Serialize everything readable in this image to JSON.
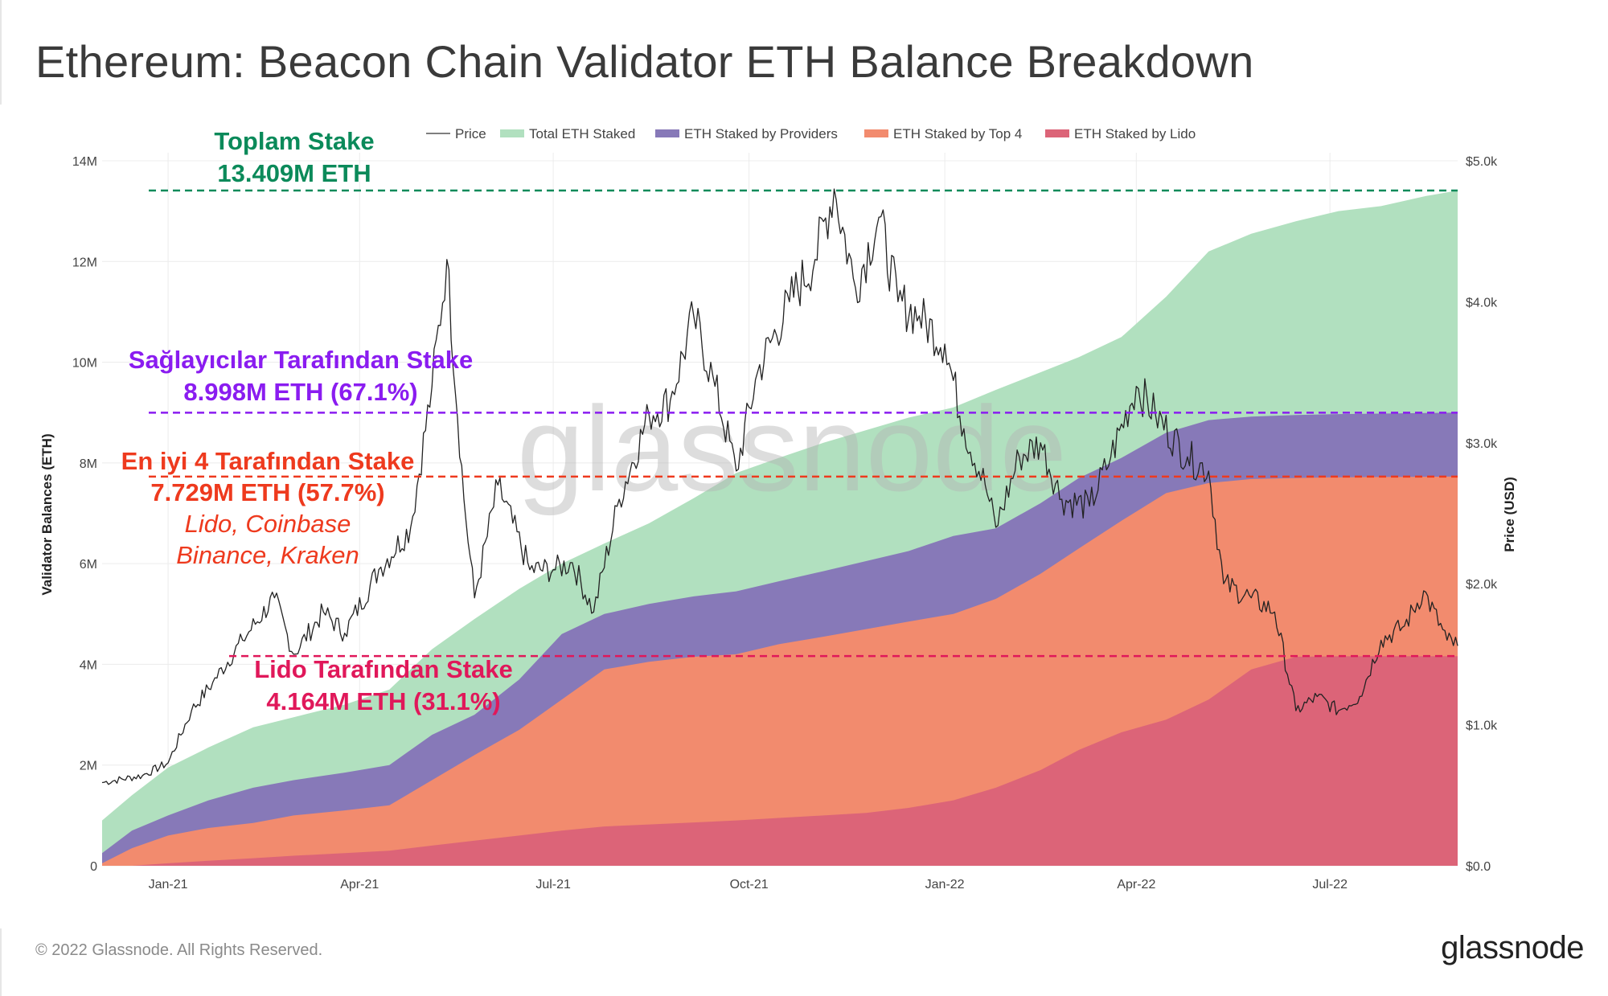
{
  "page": {
    "title": "Ethereum: Beacon Chain Validator ETH Balance Breakdown",
    "footer": "© 2022 Glassnode. All Rights Reserved.",
    "brand": "glassnode",
    "watermark": "glassnode"
  },
  "chart_data": {
    "type": "area",
    "xlabel": "",
    "ylabel": "Validator Balances (ETH)",
    "y2label": "Price (USD)",
    "ylim": [
      0,
      14000000
    ],
    "y2lim": [
      0,
      5000
    ],
    "x_range": [
      "2020-12-01",
      "2022-08-30"
    ],
    "x_ticks": [
      {
        "date": "2021-01-01",
        "label": "Jan-21"
      },
      {
        "date": "2021-04-01",
        "label": "Apr-21"
      },
      {
        "date": "2021-07-01",
        "label": "Jul-21"
      },
      {
        "date": "2021-10-01",
        "label": "Oct-21"
      },
      {
        "date": "2022-01-01",
        "label": "Jan-22"
      },
      {
        "date": "2022-04-01",
        "label": "Apr-22"
      },
      {
        "date": "2022-07-01",
        "label": "Jul-22"
      }
    ],
    "y_ticks": [
      {
        "value": 0,
        "label": "0"
      },
      {
        "value": 2000000,
        "label": "2M"
      },
      {
        "value": 4000000,
        "label": "4M"
      },
      {
        "value": 6000000,
        "label": "6M"
      },
      {
        "value": 8000000,
        "label": "8M"
      },
      {
        "value": 10000000,
        "label": "10M"
      },
      {
        "value": 12000000,
        "label": "12M"
      },
      {
        "value": 14000000,
        "label": "14M"
      }
    ],
    "y2_ticks": [
      {
        "value": 0,
        "label": "$0.0"
      },
      {
        "value": 1000,
        "label": "$1.0k"
      },
      {
        "value": 2000,
        "label": "$2.0k"
      },
      {
        "value": 3000,
        "label": "$3.0k"
      },
      {
        "value": 4000,
        "label": "$4.0k"
      },
      {
        "value": 5000,
        "label": "$5.0k"
      }
    ],
    "grid": true,
    "legend_position": "top-center",
    "dates": [
      "2020-12-01",
      "2020-12-15",
      "2021-01-01",
      "2021-01-20",
      "2021-02-10",
      "2021-03-01",
      "2021-03-25",
      "2021-04-15",
      "2021-05-05",
      "2021-05-25",
      "2021-06-15",
      "2021-07-05",
      "2021-07-25",
      "2021-08-15",
      "2021-09-05",
      "2021-09-25",
      "2021-10-15",
      "2021-11-05",
      "2021-11-25",
      "2021-12-15",
      "2022-01-05",
      "2022-01-25",
      "2022-02-15",
      "2022-03-05",
      "2022-03-25",
      "2022-04-15",
      "2022-05-05",
      "2022-05-25",
      "2022-06-15",
      "2022-07-05",
      "2022-07-25",
      "2022-08-15",
      "2022-08-30"
    ],
    "series": [
      {
        "name": "Total ETH Staked",
        "color": "#b1e0bf",
        "values": [
          900000,
          1400000,
          1950000,
          2350000,
          2750000,
          2950000,
          3200000,
          3500000,
          4300000,
          4900000,
          5500000,
          6000000,
          6400000,
          6800000,
          7300000,
          7800000,
          8100000,
          8400000,
          8650000,
          8900000,
          9100000,
          9450000,
          9800000,
          10100000,
          10500000,
          11300000,
          12200000,
          12550000,
          12800000,
          13000000,
          13100000,
          13300000,
          13409000
        ]
      },
      {
        "name": "ETH Staked by Providers",
        "color": "#8779b8",
        "values": [
          250000,
          700000,
          1000000,
          1300000,
          1550000,
          1700000,
          1850000,
          2000000,
          2600000,
          3000000,
          3700000,
          4600000,
          5000000,
          5200000,
          5350000,
          5450000,
          5650000,
          5850000,
          6050000,
          6250000,
          6550000,
          6700000,
          7200000,
          7700000,
          8100000,
          8600000,
          8850000,
          8920000,
          8950000,
          8970000,
          8980000,
          8990000,
          8998000
        ]
      },
      {
        "name": "ETH Staked by Top 4",
        "color": "#f28b6e",
        "values": [
          50000,
          350000,
          600000,
          750000,
          850000,
          1000000,
          1100000,
          1200000,
          1700000,
          2200000,
          2700000,
          3300000,
          3900000,
          4050000,
          4150000,
          4200000,
          4400000,
          4550000,
          4700000,
          4850000,
          5000000,
          5300000,
          5800000,
          6300000,
          6850000,
          7400000,
          7600000,
          7680000,
          7700000,
          7715000,
          7720000,
          7725000,
          7729000
        ]
      },
      {
        "name": "ETH Staked by Lido",
        "color": "#dc6478",
        "values": [
          0,
          0,
          50000,
          100000,
          150000,
          200000,
          250000,
          300000,
          400000,
          500000,
          600000,
          700000,
          780000,
          820000,
          860000,
          900000,
          950000,
          1000000,
          1050000,
          1150000,
          1300000,
          1550000,
          1900000,
          2300000,
          2650000,
          2900000,
          3300000,
          3900000,
          4150000,
          4160000,
          4162000,
          4163000,
          4164000
        ]
      },
      {
        "name": "Price",
        "color": "#222222",
        "unit": "USD",
        "points": [
          [
            "2020-12-01",
            590
          ],
          [
            "2020-12-20",
            640
          ],
          [
            "2021-01-01",
            730
          ],
          [
            "2021-01-12",
            1100
          ],
          [
            "2021-01-22",
            1300
          ],
          [
            "2021-02-05",
            1600
          ],
          [
            "2021-02-20",
            1900
          ],
          [
            "2021-03-01",
            1500
          ],
          [
            "2021-03-15",
            1800
          ],
          [
            "2021-03-25",
            1650
          ],
          [
            "2021-04-10",
            2100
          ],
          [
            "2021-04-25",
            2400
          ],
          [
            "2021-05-05",
            3400
          ],
          [
            "2021-05-12",
            4300
          ],
          [
            "2021-05-20",
            2600
          ],
          [
            "2021-05-25",
            1900
          ],
          [
            "2021-06-05",
            2700
          ],
          [
            "2021-06-20",
            2100
          ],
          [
            "2021-07-01",
            2100
          ],
          [
            "2021-07-10",
            2150
          ],
          [
            "2021-07-20",
            1800
          ],
          [
            "2021-08-01",
            2600
          ],
          [
            "2021-08-15",
            3200
          ],
          [
            "2021-08-25",
            3300
          ],
          [
            "2021-09-05",
            3900
          ],
          [
            "2021-09-15",
            3400
          ],
          [
            "2021-09-25",
            2800
          ],
          [
            "2021-10-05",
            3500
          ],
          [
            "2021-10-20",
            4000
          ],
          [
            "2021-11-01",
            4300
          ],
          [
            "2021-11-10",
            4800
          ],
          [
            "2021-11-20",
            4100
          ],
          [
            "2021-12-01",
            4600
          ],
          [
            "2021-12-10",
            4000
          ],
          [
            "2021-12-20",
            3900
          ],
          [
            "2022-01-01",
            3700
          ],
          [
            "2022-01-10",
            3100
          ],
          [
            "2022-01-20",
            2700
          ],
          [
            "2022-01-25",
            2400
          ],
          [
            "2022-02-05",
            2900
          ],
          [
            "2022-02-15",
            3000
          ],
          [
            "2022-02-25",
            2600
          ],
          [
            "2022-03-10",
            2550
          ],
          [
            "2022-03-20",
            2900
          ],
          [
            "2022-04-01",
            3400
          ],
          [
            "2022-04-10",
            3200
          ],
          [
            "2022-04-25",
            2900
          ],
          [
            "2022-05-05",
            2800
          ],
          [
            "2022-05-12",
            2000
          ],
          [
            "2022-05-25",
            1900
          ],
          [
            "2022-06-05",
            1800
          ],
          [
            "2022-06-15",
            1100
          ],
          [
            "2022-06-25",
            1200
          ],
          [
            "2022-07-05",
            1100
          ],
          [
            "2022-07-15",
            1200
          ],
          [
            "2022-07-25",
            1600
          ],
          [
            "2022-08-05",
            1700
          ],
          [
            "2022-08-14",
            1950
          ],
          [
            "2022-08-25",
            1600
          ],
          [
            "2022-08-30",
            1560
          ]
        ]
      }
    ],
    "reference_lines": [
      {
        "name": "total",
        "value": 13409000,
        "color": "#0b8a5a",
        "label_line1": "Toplam Stake",
        "label_line2": "13.409M ETH"
      },
      {
        "name": "providers",
        "value": 8998000,
        "color": "#8a1cf0",
        "label_line1": "Sağlayıcılar Tarafından Stake",
        "label_line2": "8.998M ETH (67.1%)"
      },
      {
        "name": "top4",
        "value": 7729000,
        "color": "#ee3a1e",
        "label_line1": "En iyi 4 Tarafından Stake",
        "label_line2": "7.729M ETH (57.7%)",
        "note_line1": "Lido, Coinbase",
        "note_line2": "Binance, Kraken"
      },
      {
        "name": "lido",
        "value": 4164000,
        "color": "#e0185a",
        "label_line1": "Lido Tarafından Stake",
        "label_line2": "4.164M ETH (31.1%)"
      }
    ]
  }
}
